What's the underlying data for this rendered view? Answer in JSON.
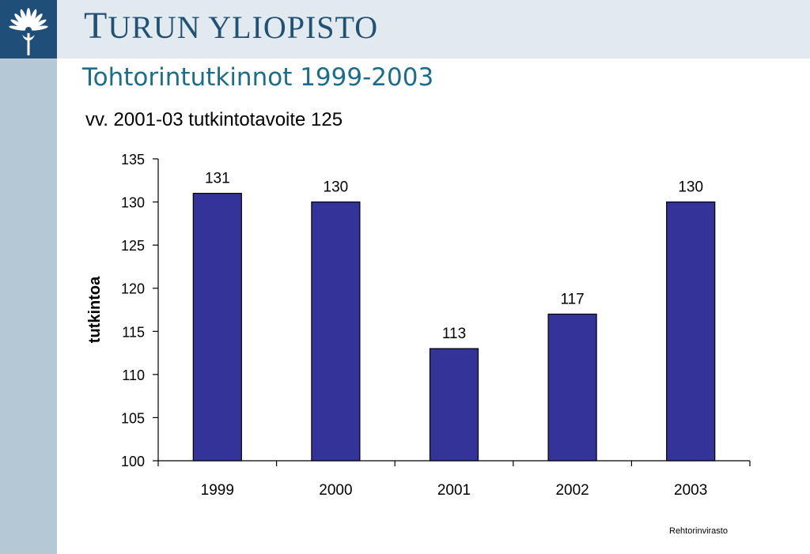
{
  "header": {
    "org_name_initial": "T",
    "org_name_rest": "URUN YLIOPISTO"
  },
  "slide": {
    "title": "Tohtorintutkinnot 1999-2003",
    "footer": "Rehtorinvirasto"
  },
  "chart_data": {
    "type": "bar",
    "title": "vv. 2001-03 tutkintotavoite 125",
    "xlabel": "",
    "ylabel": "tutkintoa",
    "categories": [
      "1999",
      "2000",
      "2001",
      "2002",
      "2003"
    ],
    "values": [
      131,
      130,
      113,
      117,
      130
    ],
    "ylim": [
      100,
      135
    ],
    "yticks": [
      100,
      105,
      110,
      115,
      120,
      125,
      130,
      135
    ],
    "data_labels": true,
    "grid": false,
    "legend": "none",
    "bar_color": "#333399"
  },
  "colors": {
    "header_band": "#e2e9ef",
    "side_band": "#b4c8d6",
    "logo_background": "#1f4e79",
    "org_name": "#1f5275",
    "title": "#1a6e8c"
  },
  "icons": {
    "logo": "university-seal-icon"
  }
}
